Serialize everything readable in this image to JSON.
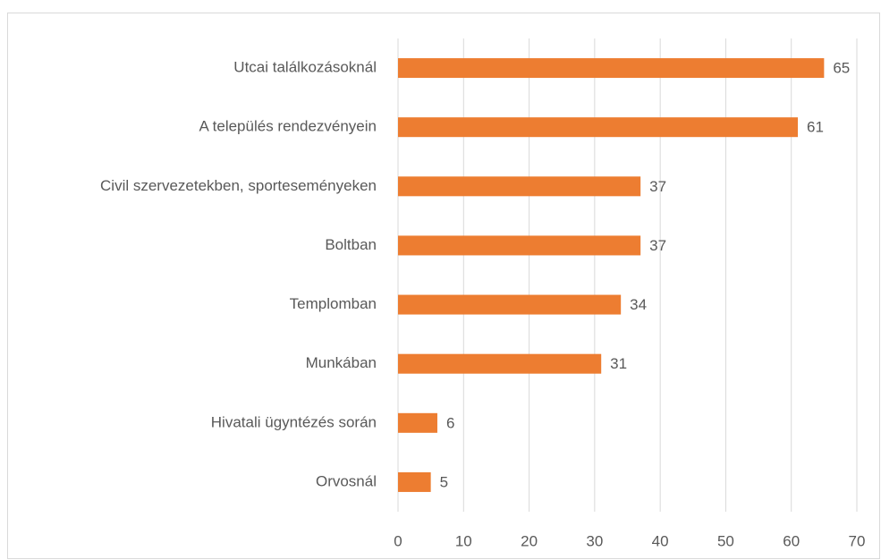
{
  "chart_data": {
    "type": "bar",
    "orientation": "horizontal",
    "categories": [
      "Utcai találkozásoknál",
      "A település rendezvényein",
      "Civil szervezetekben, sporteseményeken",
      "Boltban",
      "Templomban",
      "Munkában",
      "Hivatali ügyntézés során",
      "Orvosnál"
    ],
    "values": [
      65,
      61,
      37,
      37,
      34,
      31,
      6,
      5
    ],
    "color": "#ed7d31",
    "xlim": [
      0,
      70
    ],
    "xticks": [
      0,
      10,
      20,
      30,
      40,
      50,
      60,
      70
    ],
    "grid": true
  }
}
